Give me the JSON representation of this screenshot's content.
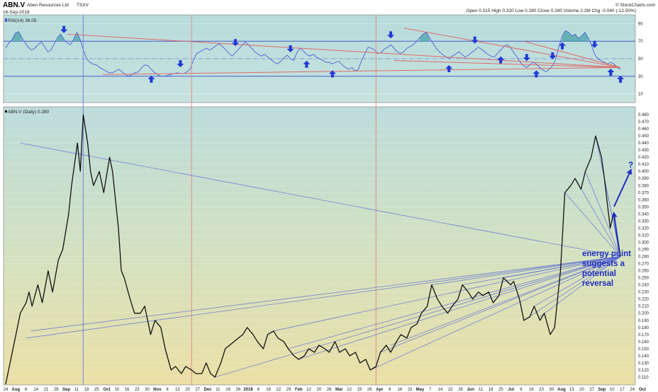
{
  "header": {
    "symbol": "ABN.V",
    "company": "Aben Resources Ltd",
    "exchange": "TSXV",
    "date": "16-Sep-2018",
    "logo": "© StockCharts.com",
    "quote": "Open 0.315  High 0.320  Low 0.280  Close 0.280  Volume 2.2M  Chg -0.040 (-12.50%)"
  },
  "rsi_panel": {
    "label": "RSI(14) 38.05",
    "levels": [
      90,
      70,
      50,
      30,
      10
    ],
    "overbought": 70,
    "oversold": 30,
    "values": [
      62,
      68,
      72,
      79,
      81,
      74,
      68,
      63,
      60,
      62,
      66,
      69,
      64,
      58,
      60,
      67,
      74,
      78,
      72,
      68,
      66,
      72,
      80,
      72,
      60,
      50,
      46,
      44,
      43,
      40,
      38,
      36,
      34,
      34,
      36,
      38,
      35,
      32,
      30,
      32,
      34,
      35,
      40,
      43,
      42,
      38,
      34,
      32,
      30,
      30,
      31,
      32,
      33,
      34,
      33,
      33,
      35,
      38,
      48,
      56,
      58,
      60,
      62,
      60,
      62,
      65,
      67,
      64,
      60,
      56,
      53,
      57,
      61,
      65,
      69,
      66,
      62,
      58,
      55,
      53,
      55,
      52,
      49,
      46,
      44,
      47,
      51,
      54,
      50,
      48,
      57,
      62,
      59,
      55,
      53,
      55,
      52,
      50,
      48,
      46,
      46,
      44,
      46,
      47,
      43,
      40,
      38,
      40,
      36,
      38,
      48,
      56,
      63,
      62,
      60,
      56,
      57,
      61,
      63,
      66,
      62,
      58,
      56,
      58,
      62,
      64,
      66,
      70,
      74,
      78,
      80,
      74,
      68,
      62,
      58,
      55,
      52,
      50,
      53,
      55,
      58,
      55,
      52,
      54,
      57,
      60,
      63,
      61,
      58,
      55,
      53,
      52,
      56,
      60,
      64,
      66,
      63,
      57,
      52,
      46,
      42,
      40,
      43,
      46,
      44,
      40,
      37,
      35,
      38,
      42,
      50,
      64,
      76,
      82,
      80,
      76,
      78,
      73,
      76,
      80,
      74,
      66,
      55,
      50,
      48,
      46,
      44,
      46,
      44,
      40,
      38
    ]
  },
  "price_panel": {
    "label": "ABN.V (Daily) 0.280",
    "y_ticks": [
      0.48,
      0.47,
      0.46,
      0.45,
      0.44,
      0.43,
      0.42,
      0.41,
      0.4,
      0.39,
      0.38,
      0.37,
      0.36,
      0.35,
      0.34,
      0.33,
      0.32,
      0.31,
      0.3,
      0.29,
      0.28,
      0.27,
      0.26,
      0.25,
      0.24,
      0.23,
      0.22,
      0.21,
      0.2,
      0.19,
      0.18,
      0.17,
      0.16,
      0.15,
      0.14,
      0.13,
      0.12,
      0.11
    ],
    "annotation_lines": [
      "energy point",
      "suggests a",
      "potential",
      "reversal"
    ],
    "question_mark": "?"
  },
  "x_axis": {
    "labels": [
      "24",
      "Aug",
      "8",
      "14",
      "21",
      "28",
      "Sep",
      "11",
      "18",
      "25",
      "Oct",
      "10",
      "16",
      "23",
      "30",
      "Nov",
      "6",
      "13",
      "20",
      "27",
      "Dec",
      "11",
      "18",
      "26",
      "2018",
      "8",
      "16",
      "22",
      "29",
      "Feb",
      "12",
      "20",
      "26",
      "Mar",
      "12",
      "19",
      "26",
      "Apr",
      "9",
      "16",
      "23",
      "May",
      "7",
      "14",
      "22",
      "28",
      "Jun",
      "11",
      "18",
      "25",
      "Jul",
      "9",
      "16",
      "23",
      "30",
      "Aug",
      "13",
      "20",
      "27",
      "Sep",
      "10",
      "17",
      "24",
      "Oct"
    ]
  },
  "chart_data": {
    "type": "line",
    "title": "ABN.V Aben Resources Ltd TSXV",
    "xlabel": "",
    "ylabel": "",
    "ylim": [
      0.1,
      0.485
    ],
    "x_range": [
      "2017-07-24",
      "2018-10-01"
    ],
    "series": [
      {
        "name": "ABN.V (Daily) 0.280",
        "points": [
          [
            "2017-07-24",
            0.1
          ],
          [
            "2017-07-27",
            0.13
          ],
          [
            "2017-07-31",
            0.17
          ],
          [
            "2017-08-03",
            0.2
          ],
          [
            "2017-08-07",
            0.215
          ],
          [
            "2017-08-09",
            0.23
          ],
          [
            "2017-08-11",
            0.21
          ],
          [
            "2017-08-15",
            0.24
          ],
          [
            "2017-08-18",
            0.215
          ],
          [
            "2017-08-22",
            0.26
          ],
          [
            "2017-08-25",
            0.23
          ],
          [
            "2017-08-29",
            0.275
          ],
          [
            "2017-09-01",
            0.29
          ],
          [
            "2017-09-05",
            0.34
          ],
          [
            "2017-09-07",
            0.38
          ],
          [
            "2017-09-11",
            0.44
          ],
          [
            "2017-09-13",
            0.4
          ],
          [
            "2017-09-15",
            0.48
          ],
          [
            "2017-09-18",
            0.44
          ],
          [
            "2017-09-20",
            0.4
          ],
          [
            "2017-09-22",
            0.38
          ],
          [
            "2017-09-26",
            0.4
          ],
          [
            "2017-09-29",
            0.37
          ],
          [
            "2017-10-03",
            0.42
          ],
          [
            "2017-10-05",
            0.4
          ],
          [
            "2017-10-09",
            0.32
          ],
          [
            "2017-10-11",
            0.26
          ],
          [
            "2017-10-13",
            0.25
          ],
          [
            "2017-10-17",
            0.22
          ],
          [
            "2017-10-20",
            0.2
          ],
          [
            "2017-10-24",
            0.2
          ],
          [
            "2017-10-27",
            0.21
          ],
          [
            "2017-10-31",
            0.17
          ],
          [
            "2017-11-03",
            0.19
          ],
          [
            "2017-11-07",
            0.18
          ],
          [
            "2017-11-10",
            0.15
          ],
          [
            "2017-11-14",
            0.12
          ],
          [
            "2017-11-17",
            0.125
          ],
          [
            "2017-11-21",
            0.115
          ],
          [
            "2017-11-24",
            0.125
          ],
          [
            "2017-11-28",
            0.12
          ],
          [
            "2017-12-01",
            0.115
          ],
          [
            "2017-12-05",
            0.115
          ],
          [
            "2017-12-08",
            0.13
          ],
          [
            "2017-12-11",
            0.115
          ],
          [
            "2017-12-14",
            0.11
          ],
          [
            "2017-12-18",
            0.13
          ],
          [
            "2017-12-21",
            0.15
          ],
          [
            "2017-12-27",
            0.16
          ],
          [
            "2018-01-02",
            0.17
          ],
          [
            "2018-01-05",
            0.18
          ],
          [
            "2018-01-09",
            0.17
          ],
          [
            "2018-01-12",
            0.16
          ],
          [
            "2018-01-16",
            0.15
          ],
          [
            "2018-01-19",
            0.17
          ],
          [
            "2018-01-23",
            0.175
          ],
          [
            "2018-01-26",
            0.165
          ],
          [
            "2018-01-30",
            0.16
          ],
          [
            "2018-02-02",
            0.15
          ],
          [
            "2018-02-06",
            0.14
          ],
          [
            "2018-02-09",
            0.135
          ],
          [
            "2018-02-13",
            0.14
          ],
          [
            "2018-02-16",
            0.15
          ],
          [
            "2018-02-20",
            0.145
          ],
          [
            "2018-02-23",
            0.155
          ],
          [
            "2018-02-27",
            0.15
          ],
          [
            "2018-03-02",
            0.145
          ],
          [
            "2018-03-06",
            0.16
          ],
          [
            "2018-03-09",
            0.145
          ],
          [
            "2018-03-13",
            0.15
          ],
          [
            "2018-03-16",
            0.14
          ],
          [
            "2018-03-20",
            0.145
          ],
          [
            "2018-03-23",
            0.13
          ],
          [
            "2018-03-27",
            0.135
          ],
          [
            "2018-03-30",
            0.12
          ],
          [
            "2018-04-03",
            0.125
          ],
          [
            "2018-04-06",
            0.145
          ],
          [
            "2018-04-10",
            0.155
          ],
          [
            "2018-04-13",
            0.145
          ],
          [
            "2018-04-17",
            0.16
          ],
          [
            "2018-04-20",
            0.17
          ],
          [
            "2018-04-24",
            0.165
          ],
          [
            "2018-04-27",
            0.18
          ],
          [
            "2018-05-01",
            0.185
          ],
          [
            "2018-05-04",
            0.2
          ],
          [
            "2018-05-08",
            0.21
          ],
          [
            "2018-05-11",
            0.24
          ],
          [
            "2018-05-15",
            0.22
          ],
          [
            "2018-05-18",
            0.21
          ],
          [
            "2018-05-22",
            0.2
          ],
          [
            "2018-05-25",
            0.21
          ],
          [
            "2018-05-29",
            0.22
          ],
          [
            "2018-06-01",
            0.24
          ],
          [
            "2018-06-05",
            0.23
          ],
          [
            "2018-06-08",
            0.22
          ],
          [
            "2018-06-12",
            0.23
          ],
          [
            "2018-06-15",
            0.225
          ],
          [
            "2018-06-19",
            0.23
          ],
          [
            "2018-06-22",
            0.215
          ],
          [
            "2018-06-26",
            0.225
          ],
          [
            "2018-06-29",
            0.25
          ],
          [
            "2018-07-04",
            0.24
          ],
          [
            "2018-07-06",
            0.245
          ],
          [
            "2018-07-10",
            0.22
          ],
          [
            "2018-07-13",
            0.19
          ],
          [
            "2018-07-17",
            0.195
          ],
          [
            "2018-07-20",
            0.21
          ],
          [
            "2018-07-24",
            0.19
          ],
          [
            "2018-07-27",
            0.2
          ],
          [
            "2018-07-31",
            0.17
          ],
          [
            "2018-08-03",
            0.18
          ],
          [
            "2018-08-07",
            0.26
          ],
          [
            "2018-08-10",
            0.37
          ],
          [
            "2018-08-14",
            0.38
          ],
          [
            "2018-08-17",
            0.39
          ],
          [
            "2018-08-21",
            0.375
          ],
          [
            "2018-08-24",
            0.4
          ],
          [
            "2018-08-28",
            0.42
          ],
          [
            "2018-08-31",
            0.45
          ],
          [
            "2018-09-04",
            0.42
          ],
          [
            "2018-09-06",
            0.39
          ],
          [
            "2018-09-10",
            0.32
          ],
          [
            "2018-09-12",
            0.34
          ],
          [
            "2018-09-14",
            0.32
          ],
          [
            "2018-09-17",
            0.28
          ]
        ]
      }
    ],
    "rsi": {
      "name": "RSI(14) 38.05",
      "ylim": [
        0,
        100
      ],
      "levels": [
        70,
        50,
        30
      ]
    },
    "annotations": [
      {
        "type": "trendline_fan",
        "converge_at": [
          "2018-09-17",
          0.28
        ]
      },
      {
        "type": "text",
        "text": "energy point suggests a potential reversal"
      },
      {
        "type": "arrow",
        "text": "?"
      }
    ],
    "grid": true,
    "legend": "top-left"
  }
}
